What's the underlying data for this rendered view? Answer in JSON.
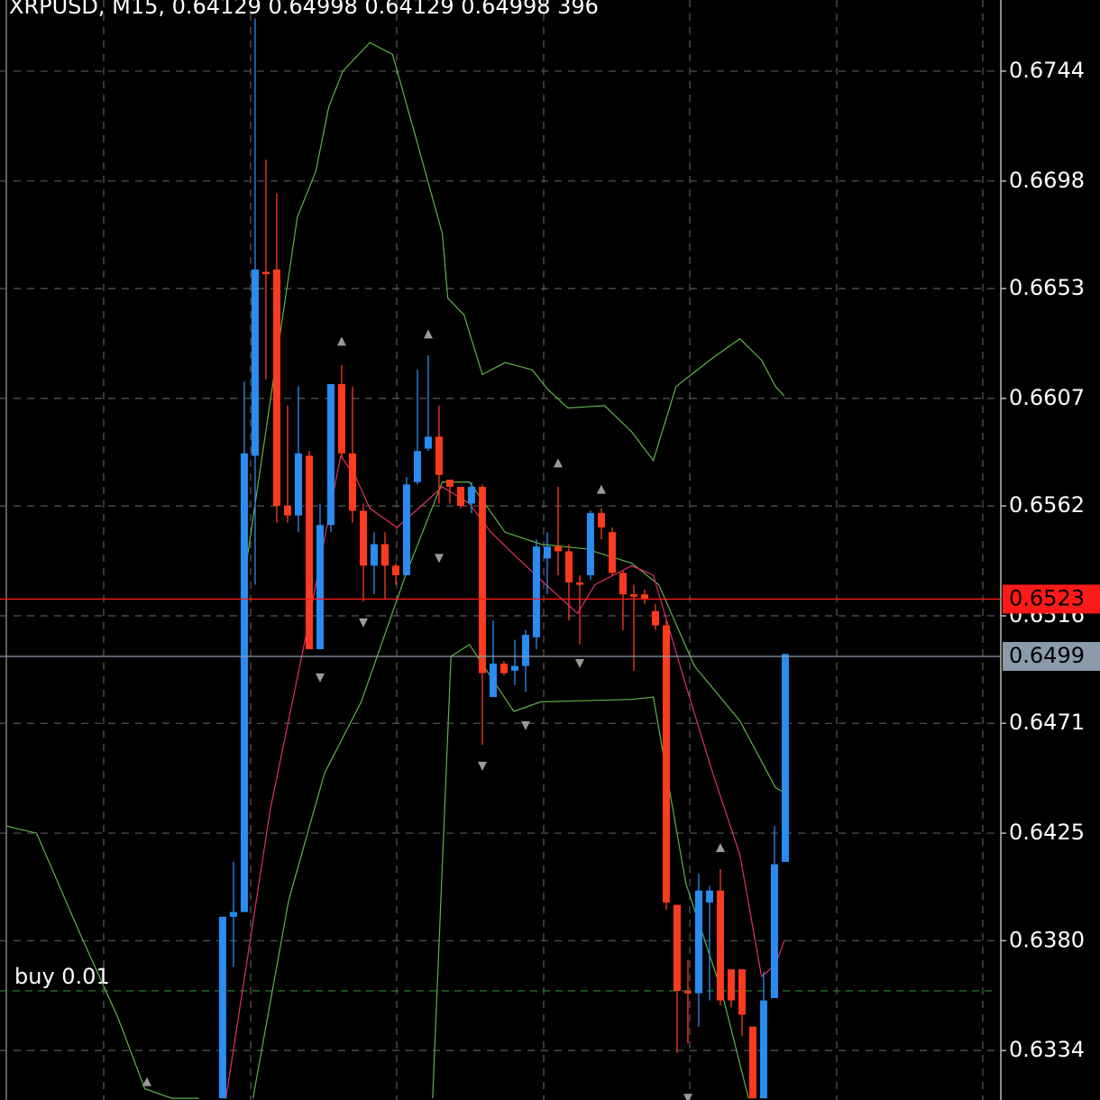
{
  "chart_data": {
    "type": "candlestick",
    "title": "XRPUSD, M15, 0.64129 0.64998 0.64129 0.64998 396",
    "up_color": "#2a8cf0",
    "down_color": "#ff3b1f",
    "grid": true,
    "xlim": [
      -0.58,
      91.92
    ],
    "ylim": [
      0.63133,
      0.67738
    ],
    "yticks": [
      0.6744,
      0.6698,
      0.6653,
      0.6607,
      0.6562,
      0.6516,
      0.6471,
      0.6425,
      {
        "value": 0.638,
        "label": "0.6380"
      },
      0.6334
    ],
    "candles": {
      "x": [
        20,
        21,
        22,
        23,
        24,
        25,
        26,
        27,
        28,
        29,
        30,
        31,
        32,
        33,
        34,
        35,
        36,
        37,
        38,
        39,
        40,
        41,
        42,
        43,
        44,
        45,
        46,
        47,
        48,
        49,
        50,
        51,
        52,
        53,
        54,
        55,
        56,
        57,
        58,
        59,
        60,
        61,
        62,
        63,
        64,
        65,
        66,
        67,
        68,
        69,
        70,
        71,
        72
      ],
      "open": [
        0.6314,
        0.639,
        0.6392,
        0.6583,
        0.666,
        0.6661,
        0.6562,
        0.6558,
        0.6583,
        0.6502,
        0.6554,
        0.6613,
        0.6584,
        0.656,
        0.6537,
        0.6546,
        0.6537,
        0.6533,
        0.6572,
        0.6586,
        0.6591,
        0.6573,
        0.657,
        0.6563,
        0.657,
        0.6482,
        0.6496,
        0.6493,
        0.6495,
        0.6507,
        0.654,
        0.6545,
        0.6543,
        0.653,
        0.6533,
        0.6559,
        0.6551,
        0.6534,
        0.6525,
        0.6525,
        0.6518,
        0.6512,
        0.6395,
        0.6359,
        0.6358,
        0.6396,
        0.6401,
        0.6368,
        0.6368,
        0.6344,
        0.6314,
        0.6356,
        0.6413
      ],
      "high": [
        0.639,
        0.6413,
        0.6614,
        0.6766,
        0.6707,
        0.6693,
        0.6604,
        0.6612,
        0.6585,
        0.6563,
        0.6613,
        0.6621,
        0.6612,
        0.6563,
        0.6551,
        0.6551,
        0.6538,
        0.6574,
        0.6619,
        0.6625,
        0.6604,
        0.6573,
        0.657,
        0.6572,
        0.6571,
        0.6514,
        0.6497,
        0.6506,
        0.651,
        0.6548,
        0.6551,
        0.657,
        0.6546,
        0.6533,
        0.656,
        0.6561,
        0.6553,
        0.6535,
        0.6529,
        0.6527,
        0.6521,
        0.6514,
        0.6395,
        0.6372,
        0.6408,
        0.6403,
        0.641,
        0.6368,
        0.6368,
        0.6344,
        0.6367,
        0.6428,
        0.65
      ],
      "low": [
        0.6314,
        0.6369,
        0.6392,
        0.6529,
        0.6615,
        0.6555,
        0.6555,
        0.6551,
        0.6502,
        0.6502,
        0.6551,
        0.6582,
        0.6555,
        0.6522,
        0.6525,
        0.6523,
        0.6529,
        0.6533,
        0.6571,
        0.6585,
        0.6563,
        0.6563,
        0.6561,
        0.6559,
        0.6462,
        0.6482,
        0.6491,
        0.6487,
        0.6484,
        0.6502,
        0.6525,
        0.6533,
        0.6514,
        0.6504,
        0.6531,
        0.6548,
        0.6533,
        0.651,
        0.6493,
        0.6521,
        0.651,
        0.6393,
        0.6333,
        0.6337,
        0.6344,
        0.6355,
        0.6353,
        0.6352,
        0.634,
        0.6314,
        0.6314,
        0.6356,
        0.6413
      ],
      "close": [
        0.639,
        0.6392,
        0.6584,
        0.6661,
        0.6659,
        0.6562,
        0.6558,
        0.6584,
        0.6502,
        0.6554,
        0.6613,
        0.6584,
        0.656,
        0.6537,
        0.6546,
        0.6537,
        0.6533,
        0.6571,
        0.6585,
        0.6591,
        0.6575,
        0.657,
        0.6562,
        0.657,
        0.6492,
        0.6496,
        0.6492,
        0.6495,
        0.6508,
        0.6545,
        0.6545,
        0.6543,
        0.653,
        0.6529,
        0.6559,
        0.6553,
        0.6534,
        0.6525,
        0.6524,
        0.6523,
        0.6512,
        0.6396,
        0.6359,
        0.6358,
        0.6401,
        0.6401,
        0.6355,
        0.6355,
        0.6349,
        0.6314,
        0.6355,
        0.6412,
        0.65
      ]
    },
    "lines": [
      {
        "color": "#5fb34a",
        "x": [
          21.9,
          26.9,
          28.6,
          29.8,
          31.1,
          33.6,
          35.7,
          37.8,
          40.3,
          40.8,
          42.3,
          44,
          46.1,
          48.6,
          50,
          51.9,
          55.3,
          57.8,
          59.8,
          61.9,
          65.3,
          67.8,
          69.8,
          71.1,
          71.9
        ],
        "values": [
          0.6529,
          0.6683,
          0.6702,
          0.6729,
          0.6744,
          0.6756,
          0.6751,
          0.6717,
          0.6676,
          0.6649,
          0.6642,
          0.6617,
          0.6622,
          0.6619,
          0.6611,
          0.6603,
          0.6604,
          0.6593,
          0.6581,
          0.6612,
          0.6624,
          0.6632,
          0.6623,
          0.6612,
          0.6608
        ]
      },
      {
        "color": "#5fb34a",
        "x": [
          22.8,
          26.1,
          29.4,
          32.8,
          36.9,
          40.3,
          42.8,
          46.1,
          49.4,
          53.6,
          57.8,
          60.3,
          63.6,
          67.8,
          71.1,
          71.9
        ],
        "values": [
          0.6314,
          0.6397,
          0.645,
          0.648,
          0.6533,
          0.6572,
          0.6572,
          0.6551,
          0.6546,
          0.6544,
          0.6538,
          0.6529,
          0.6495,
          0.6472,
          0.6444,
          0.6442
        ]
      },
      {
        "color": "#5fb34a",
        "x": [
          0,
          2.8,
          6.9,
          10.3,
          12.8,
          15.3,
          17.8,
          null,
          39.4,
          41.1,
          42.8,
          46.9,
          49.4,
          57.8,
          59.8,
          62.8,
          66.1,
          68.6
        ],
        "values": [
          0.6428,
          0.6425,
          0.6382,
          0.6348,
          0.6318,
          0.6314,
          0.6314,
          null,
          0.6314,
          0.6499,
          0.6504,
          0.6476,
          0.648,
          0.6481,
          0.6482,
          0.6404,
          0.6359,
          0.6314
        ]
      },
      {
        "color": "#e0306a",
        "x": [
          20.3,
          24.4,
          27.8,
          29.4,
          30.9,
          32.3,
          33.6,
          36.1,
          38.6,
          40.3,
          42.8,
          44.8,
          47.3,
          49.4,
          52.8,
          54.4,
          57.8,
          59.8,
          62.8,
          65.3,
          67.8,
          69.8,
          71.1,
          71.9
        ],
        "values": [
          0.6314,
          0.6435,
          0.651,
          0.6548,
          0.6583,
          0.6574,
          0.6561,
          0.6553,
          0.6563,
          0.657,
          0.6563,
          0.6551,
          0.654,
          0.6531,
          0.6517,
          0.6529,
          0.6537,
          0.6533,
          0.6487,
          0.645,
          0.6416,
          0.6365,
          0.637,
          0.638
        ]
      }
    ],
    "fractals_up": {
      "color": "#9a9a9a",
      "x": [
        13,
        31,
        39,
        51,
        55,
        66
      ],
      "values": [
        0.6321,
        0.6631,
        0.6634,
        0.658,
        0.6569,
        0.6419
      ]
    },
    "fractals_down": {
      "color": "#9a9a9a",
      "x": [
        29,
        33,
        40,
        44,
        48,
        53,
        63
      ],
      "values": [
        0.649,
        0.6513,
        0.654,
        0.6453,
        0.647,
        0.6496,
        0.6314
      ]
    },
    "price_lines": [
      {
        "value": 0.6523,
        "color": "#ff1a1a",
        "label_color": "#000000"
      },
      {
        "value": 0.6499,
        "color": "#8b9bab",
        "label_color": "#000000"
      }
    ],
    "order_line": {
      "label": "buy 0.01",
      "value": 0.6359,
      "color": "#2e8b2e"
    }
  }
}
